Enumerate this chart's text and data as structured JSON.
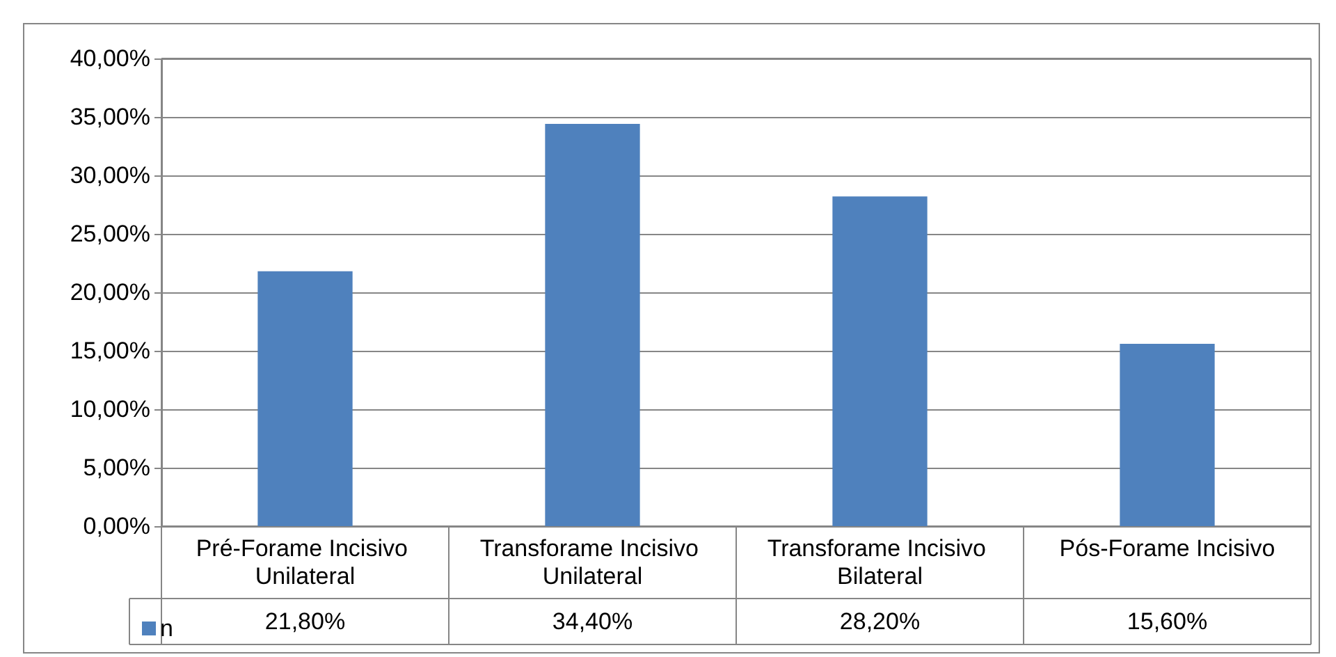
{
  "chart_data": {
    "type": "bar",
    "categories": [
      "Pré-Forame Incisivo Unilateral",
      "Transforame Incisivo Unilateral",
      "Transforame Incisivo Bilateral",
      "Pós-Forame Incisivo"
    ],
    "series": [
      {
        "name": "n",
        "color": "#4f81bd",
        "values": [
          21.8,
          34.4,
          28.2,
          15.6
        ],
        "value_labels": [
          "21,80%",
          "34,40%",
          "28,20%",
          "15,60%"
        ]
      }
    ],
    "ylim": [
      0,
      40
    ],
    "yticks": [
      {
        "value": 0,
        "label": "0,00%"
      },
      {
        "value": 5,
        "label": "5,00%"
      },
      {
        "value": 10,
        "label": "10,00%"
      },
      {
        "value": 15,
        "label": "15,00%"
      },
      {
        "value": 20,
        "label": "20,00%"
      },
      {
        "value": 25,
        "label": "25,00%"
      },
      {
        "value": 30,
        "label": "30,00%"
      },
      {
        "value": 35,
        "label": "35,00%"
      },
      {
        "value": 40,
        "label": "40,00%"
      }
    ],
    "grid": "y",
    "legend": "bottom left"
  }
}
